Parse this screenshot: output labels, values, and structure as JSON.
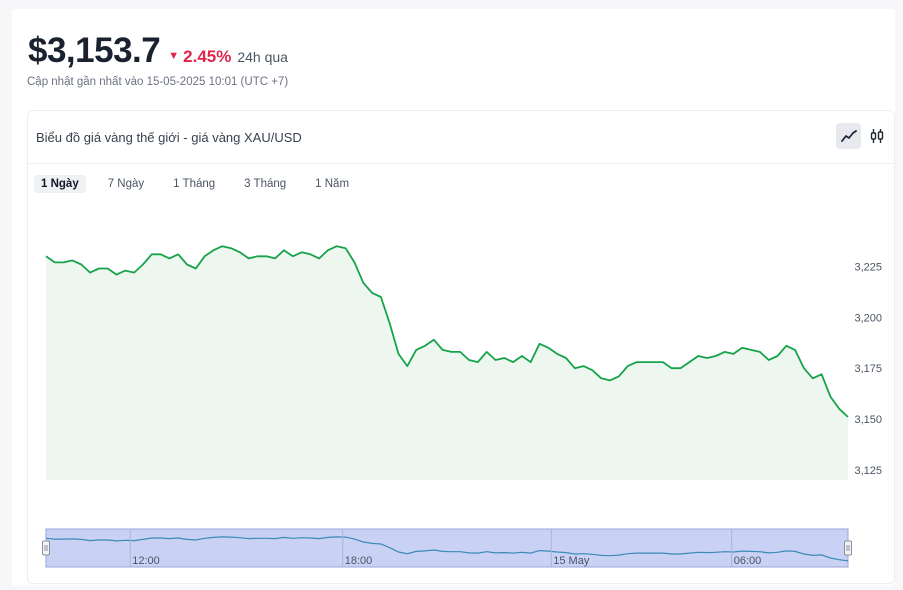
{
  "header": {
    "price": "$3,153.7",
    "change_arrow": "▼",
    "change_pct": "2.45%",
    "change_period": "24h qua",
    "updated": "Cập nhật gần nhất vào 15-05-2025 10:01 (UTC +7)"
  },
  "panel": {
    "title": "Biểu đồ giá vàng thế giới - giá vàng XAU/USD",
    "modes": [
      {
        "name": "line",
        "icon": "line-chart-icon",
        "active": true
      },
      {
        "name": "candlestick",
        "icon": "candlestick-icon",
        "active": false
      }
    ],
    "ranges": [
      {
        "label": "1 Ngày",
        "active": true
      },
      {
        "label": "7 Ngày",
        "active": false
      },
      {
        "label": "1 Tháng",
        "active": false
      },
      {
        "label": "3 Tháng",
        "active": false
      },
      {
        "label": "1 Năm",
        "active": false
      }
    ]
  },
  "colors": {
    "line": "#16a34a",
    "area": "#edf7f0",
    "down": "#e0254b",
    "navigator_fill": "#c9d1f5",
    "navigator_line": "#3b8bb8"
  },
  "chart_data": {
    "type": "area",
    "series": [
      {
        "values": [
          3230,
          3227,
          3227,
          3228,
          3226,
          3222,
          3224,
          3224,
          3221,
          3223,
          3222,
          3226,
          3231,
          3231,
          3229,
          3231,
          3226,
          3224,
          3230,
          3233,
          3235,
          3234,
          3232,
          3229,
          3230,
          3230,
          3229,
          3233,
          3230,
          3232,
          3231,
          3229,
          3233,
          3235,
          3234,
          3227,
          3217,
          3212,
          3210,
          3197,
          3182,
          3176,
          3184,
          3186,
          3189,
          3184,
          3183,
          3183,
          3179,
          3178,
          3183,
          3179,
          3180,
          3178,
          3181,
          3178,
          3187,
          3185,
          3182,
          3180,
          3175,
          3176,
          3174,
          3170,
          3169,
          3171,
          3176,
          3178,
          3178,
          3178,
          3178,
          3175,
          3175,
          3178,
          3181,
          3180,
          3181,
          3183,
          3182,
          3185,
          3184,
          3183,
          3179,
          3181,
          3186,
          3184,
          3175,
          3170,
          3172,
          3161,
          3155,
          3151
        ]
      }
    ],
    "ylim": [
      3120,
      3240
    ],
    "y_ticks": [
      "3,225",
      "3,200",
      "3,175",
      "3,150",
      "3,125"
    ],
    "y_tick_values": [
      3225,
      3200,
      3175,
      3150,
      3125
    ],
    "navigator_labels": [
      "12:00",
      "18:00",
      "15 May",
      "06:00"
    ],
    "navigator_label_positions": [
      0.105,
      0.37,
      0.63,
      0.855
    ],
    "grid": false
  }
}
